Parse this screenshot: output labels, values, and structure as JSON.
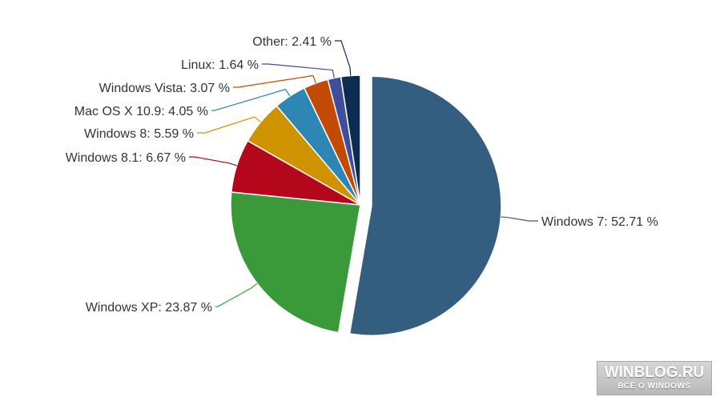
{
  "chart_data": {
    "type": "pie",
    "slices": [
      {
        "name": "Windows 7",
        "value": 52.71,
        "label": "Windows 7: 52.71 %",
        "color": "#335e80"
      },
      {
        "name": "Windows XP",
        "value": 23.87,
        "label": "Windows XP: 23.87 %",
        "color": "#3a9a3a"
      },
      {
        "name": "Windows 8.1",
        "value": 6.67,
        "label": "Windows 8.1: 6.67 %",
        "color": "#b5071b"
      },
      {
        "name": "Windows 8",
        "value": 5.59,
        "label": "Windows 8: 5.59 %",
        "color": "#cf9300"
      },
      {
        "name": "Mac OS X 10.9",
        "value": 4.05,
        "label": "Mac OS X 10.9: 4.05 %",
        "color": "#2e86b5"
      },
      {
        "name": "Windows Vista",
        "value": 3.07,
        "label": "Windows Vista: 3.07 %",
        "color": "#c24a04"
      },
      {
        "name": "Linux",
        "value": 1.64,
        "label": "Linux: 1.64 %",
        "color": "#3e4d9c"
      },
      {
        "name": "Other",
        "value": 2.41,
        "label": "Other: 2.41 %",
        "color": "#0d2c52"
      }
    ],
    "exploded_slice": "Windows 7"
  },
  "watermark": {
    "title": "WINBLOG.RU",
    "subtitle": "ВСЁ О WINDOWS"
  }
}
